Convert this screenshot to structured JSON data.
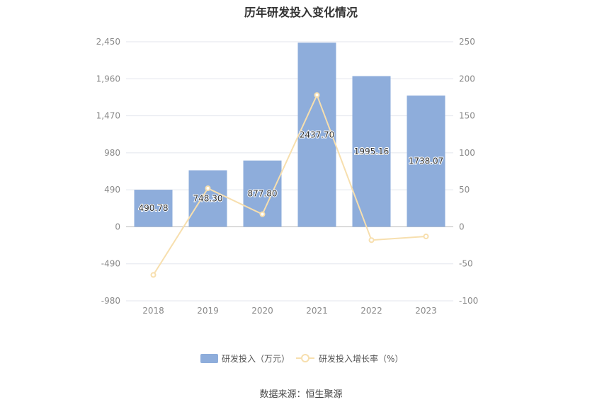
{
  "chart_data": {
    "type": "bar",
    "title": "历年研发投入变化情况",
    "categories": [
      "2018",
      "2019",
      "2020",
      "2021",
      "2022",
      "2023"
    ],
    "series": [
      {
        "name": "研发投入（万元）",
        "type": "bar",
        "axis": "left",
        "values": [
          490.78,
          748.3,
          877.8,
          2437.7,
          1995.16,
          1738.07
        ],
        "labels": [
          "490.78",
          "748.30",
          "877.80",
          "2437.70",
          "1995.16",
          "1738.07"
        ],
        "color": "#8eaddb"
      },
      {
        "name": "研发投入增长率（%）",
        "type": "line",
        "axis": "right",
        "values": [
          -65,
          52,
          17,
          178,
          -18,
          -13
        ],
        "color": "#f7dfae"
      }
    ],
    "y_left": {
      "min": -980,
      "max": 2450,
      "ticks": [
        2450,
        1960,
        1470,
        980,
        490,
        0,
        -490,
        -980
      ],
      "tick_labels": [
        "2,450",
        "1,960",
        "1,470",
        "980",
        "490",
        "0",
        "-490",
        "-980"
      ]
    },
    "y_right": {
      "min": -100,
      "max": 250,
      "ticks": [
        250,
        200,
        150,
        100,
        50,
        0,
        -50,
        -100
      ],
      "tick_labels": [
        "250",
        "200",
        "150",
        "100",
        "50",
        "0",
        "-50",
        "-100"
      ]
    },
    "grid": true,
    "legend_position": "bottom"
  },
  "source_text": "数据来源：恒生聚源"
}
